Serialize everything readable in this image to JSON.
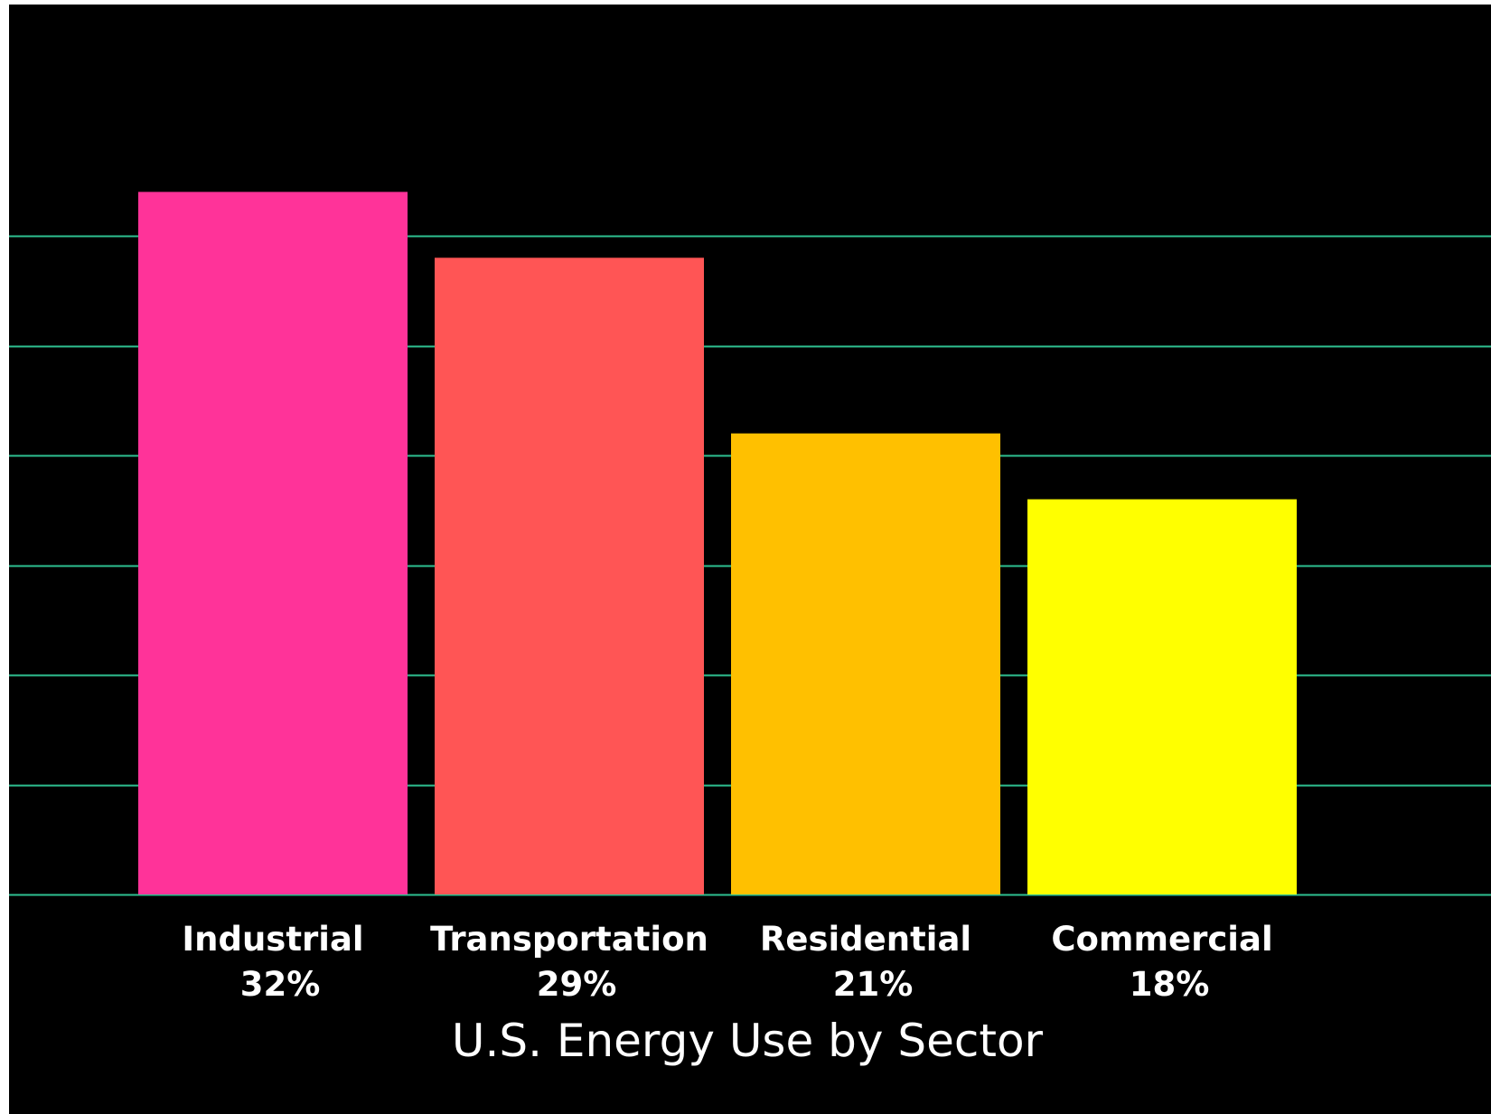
{
  "chart_data": {
    "type": "bar",
    "title": "U.S. Energy Use by Sector",
    "xlabel": "",
    "ylabel": "",
    "categories": [
      "Industrial",
      "Transportation",
      "Residential",
      "Commercial"
    ],
    "value_labels": [
      "32%",
      "29%",
      "21%",
      "18%"
    ],
    "values": [
      32,
      29,
      21,
      18
    ],
    "colors": [
      "#ff3399",
      "#ff5555",
      "#ffc000",
      "#ffff00"
    ],
    "ylim": [
      0,
      40
    ],
    "gridlines": [
      0,
      5,
      10,
      15,
      20,
      25,
      30
    ],
    "grid": true,
    "grid_color": "#2ebf91",
    "background": "#000000",
    "legend": "none"
  }
}
